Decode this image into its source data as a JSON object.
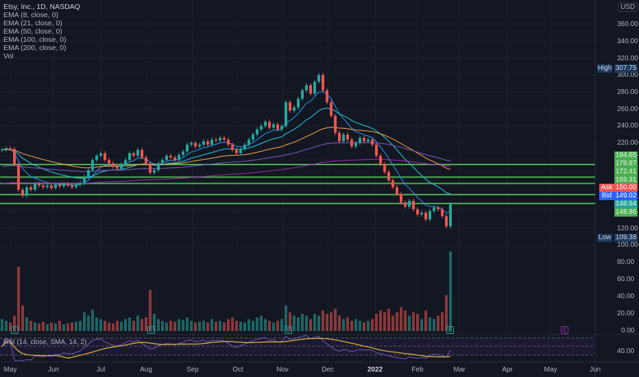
{
  "legend": {
    "title": "Etsy, Inc., 1D, NASDAQ",
    "indicators": [
      "EMA (8, close, 0)",
      "EMA (21, close, 0)",
      "EMA (50, close, 0)",
      "EMA (100, close, 0)",
      "EMA (200, close, 0)",
      "Vol"
    ]
  },
  "rsi_label": "RSI (14, close, SMA, 14, 2)",
  "currency": "USD",
  "price_axis": [
    "360.00",
    "340.00",
    "320.00",
    "300.00",
    "280.00",
    "260.00",
    "240.00",
    "220.00",
    "120.00",
    "100.00"
  ],
  "volume_axis": [
    "80.00",
    "60.00",
    "40.00",
    "20.00",
    "0.00"
  ],
  "rsi_axis": "40.00",
  "tags": {
    "high": {
      "name": "High",
      "value": "307.75"
    },
    "low": {
      "name": "Low",
      "value": "109.38"
    },
    "ask": {
      "name": "Ask",
      "value": "150.00"
    },
    "bid": {
      "name": "Bid",
      "value": "149.02"
    },
    "levels": [
      "194.65",
      "179.87",
      "172.41",
      "159.31"
    ],
    "last": "148.94",
    "level_last": "148.86"
  },
  "colors": {
    "background": "#131722",
    "up": "#26a69a",
    "down": "#ef5350",
    "level": "#4caf50",
    "ema8": "#2196f3",
    "ema21": "#26c6da",
    "ema50": "#f0a04b",
    "ema100": "#7e57c2",
    "ema200": "#9c27b0",
    "rsi": "#7e57c2",
    "rsi_sma": "#e0b040"
  },
  "chart_data": {
    "type": "candlestick",
    "symbol": "Etsy, Inc., 1D, NASDAQ",
    "x_ticks": [
      "May",
      "Jun",
      "Jul",
      "Aug",
      "Sep",
      "Oct",
      "Nov",
      "Dec",
      "2022",
      "Feb",
      "Mar",
      "Apr",
      "May",
      "Jun"
    ],
    "ylim": [
      100,
      370
    ],
    "closes": [
      212,
      214,
      213,
      195,
      165,
      158,
      168,
      165,
      172,
      170,
      168,
      170,
      167,
      171,
      169,
      172,
      170,
      168,
      171,
      173,
      180,
      188,
      200,
      205,
      208,
      200,
      196,
      192,
      190,
      195,
      200,
      208,
      205,
      212,
      203,
      196,
      185,
      188,
      196,
      200,
      205,
      203,
      200,
      206,
      210,
      218,
      220,
      216,
      218,
      222,
      218,
      224,
      223,
      226,
      224,
      218,
      212,
      208,
      213,
      218,
      224,
      230,
      236,
      240,
      245,
      238,
      242,
      236,
      240,
      268,
      258,
      262,
      272,
      282,
      288,
      278,
      292,
      300,
      282,
      268,
      252,
      232,
      222,
      230,
      224,
      216,
      220,
      226,
      222,
      224,
      218,
      205,
      195,
      186,
      176,
      168,
      160,
      150,
      145,
      152,
      142,
      136,
      138,
      130,
      140,
      144,
      142,
      134,
      122,
      148
    ],
    "volumes": [
      14,
      12,
      10,
      18,
      75,
      30,
      16,
      12,
      10,
      9,
      11,
      8,
      10,
      9,
      12,
      8,
      9,
      10,
      11,
      12,
      22,
      18,
      25,
      16,
      14,
      12,
      10,
      9,
      12,
      11,
      14,
      16,
      12,
      18,
      14,
      16,
      48,
      20,
      14,
      12,
      10,
      12,
      11,
      14,
      13,
      16,
      12,
      10,
      11,
      12,
      10,
      14,
      11,
      12,
      10,
      14,
      16,
      12,
      11,
      10,
      14,
      12,
      16,
      18,
      14,
      12,
      10,
      12,
      14,
      30,
      22,
      18,
      16,
      20,
      18,
      14,
      20,
      18,
      24,
      20,
      22,
      26,
      18,
      14,
      16,
      12,
      14,
      12,
      10,
      12,
      14,
      20,
      24,
      22,
      26,
      18,
      22,
      28,
      24,
      18,
      22,
      20,
      14,
      24,
      16,
      14,
      18,
      22,
      42,
      93
    ],
    "ema_periods": [
      8,
      21,
      50,
      100,
      200
    ],
    "horizontal_levels": [
      194.65,
      179.87,
      172.41,
      159.31,
      148.86
    ],
    "volume_axis_range": [
      0,
      100
    ],
    "rsi_period": 14,
    "rsi_sma": 14
  }
}
